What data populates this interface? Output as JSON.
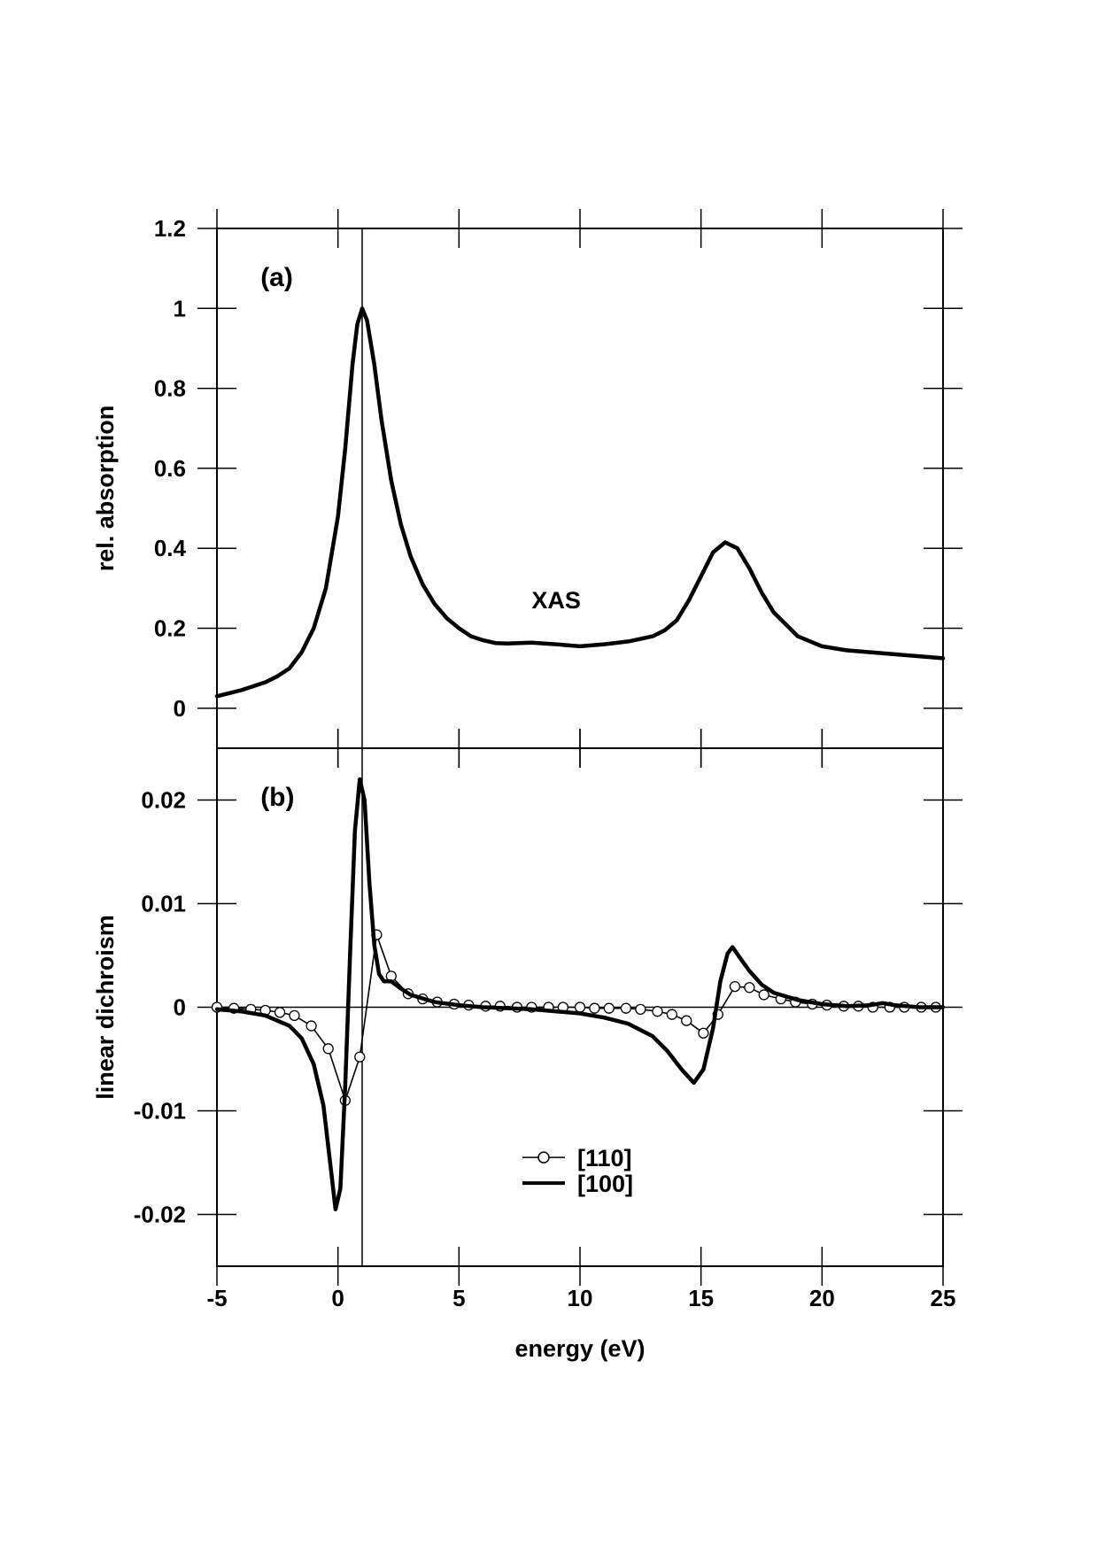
{
  "chart_data": [
    {
      "panel": "(a)",
      "type": "line",
      "xlabel": "energy  (eV)",
      "ylabel": "rel. absorption",
      "xlim": [
        -5,
        25
      ],
      "ylim": [
        -0.1,
        1.2
      ],
      "x_ticks": [
        -5,
        0,
        5,
        10,
        15,
        20,
        25
      ],
      "y_ticks": [
        0,
        0.2,
        0.4,
        0.6,
        0.8,
        1,
        1.2
      ],
      "y_tick_labels": [
        "0",
        "0.2",
        "0.4",
        "0.6",
        "0.8",
        "1",
        "1.2"
      ],
      "annotation": "XAS",
      "vertical_line_x": 1.0,
      "grid": false,
      "series": [
        {
          "x": [
            -5,
            -4,
            -3,
            -2.5,
            -2,
            -1.5,
            -1,
            -0.5,
            0,
            0.3,
            0.6,
            0.8,
            1.0,
            1.2,
            1.5,
            1.8,
            2.2,
            2.6,
            3,
            3.5,
            4,
            4.5,
            5,
            5.5,
            6,
            6.5,
            7,
            8,
            9,
            10,
            11,
            12,
            13,
            13.5,
            14,
            14.5,
            15,
            15.5,
            16,
            16.5,
            17,
            17.5,
            18,
            19,
            20,
            21,
            22,
            23,
            24,
            25
          ],
          "y": [
            0.03,
            0.045,
            0.065,
            0.08,
            0.1,
            0.14,
            0.2,
            0.3,
            0.48,
            0.65,
            0.86,
            0.96,
            1.0,
            0.97,
            0.86,
            0.72,
            0.57,
            0.46,
            0.38,
            0.31,
            0.26,
            0.225,
            0.2,
            0.18,
            0.17,
            0.163,
            0.162,
            0.164,
            0.16,
            0.155,
            0.16,
            0.167,
            0.18,
            0.195,
            0.22,
            0.27,
            0.33,
            0.39,
            0.415,
            0.4,
            0.35,
            0.29,
            0.24,
            0.18,
            0.155,
            0.145,
            0.14,
            0.135,
            0.13,
            0.125
          ]
        }
      ]
    },
    {
      "panel": "(b)",
      "type": "line",
      "xlabel": "energy  (eV)",
      "ylabel": "linear dichroism",
      "xlim": [
        -5,
        25
      ],
      "ylim": [
        -0.025,
        0.025
      ],
      "x_ticks": [
        -5,
        0,
        5,
        10,
        15,
        20,
        25
      ],
      "x_tick_labels": [
        "-5",
        "0",
        "5",
        "10",
        "15",
        "20",
        "25"
      ],
      "y_ticks": [
        -0.02,
        -0.01,
        0,
        0.01,
        0.02
      ],
      "y_tick_labels": [
        "-0.02",
        "-0.01",
        "0",
        "0.01",
        "0.02"
      ],
      "vertical_line_x": 1.0,
      "zero_line": true,
      "grid": false,
      "series": [
        {
          "name": "[110]",
          "marker": "circle",
          "x": [
            -5,
            -4.3,
            -3.6,
            -3,
            -2.4,
            -1.8,
            -1.1,
            -0.4,
            0.3,
            0.9,
            1.6,
            2.2,
            2.9,
            3.5,
            4.1,
            4.8,
            5.4,
            6.1,
            6.7,
            7.4,
            8.0,
            8.7,
            9.3,
            10,
            10.6,
            11.2,
            11.9,
            12.5,
            13.2,
            13.8,
            14.4,
            15.1,
            15.7,
            16.4,
            17.0,
            17.6,
            18.3,
            18.9,
            19.6,
            20.2,
            20.9,
            21.5,
            22.1,
            22.8,
            23.4,
            24.1,
            24.7
          ],
          "y": [
            0,
            -0.0001,
            -0.0002,
            -0.0003,
            -0.0005,
            -0.0008,
            -0.0018,
            -0.004,
            -0.009,
            -0.0048,
            0.007,
            0.003,
            0.0013,
            0.0008,
            0.0005,
            0.0003,
            0.0002,
            0.0001,
            0.0001,
            0,
            0,
            0,
            0,
            0,
            -0.0001,
            -0.0001,
            -0.0001,
            -0.0002,
            -0.0004,
            -0.0007,
            -0.0013,
            -0.0025,
            -0.0007,
            0.002,
            0.0019,
            0.0012,
            0.0008,
            0.0005,
            0.0003,
            0.0002,
            0.0001,
            0.0001,
            0,
            0,
            0,
            0,
            0
          ]
        },
        {
          "name": "[100]",
          "marker": "none",
          "x": [
            -5,
            -4,
            -3,
            -2,
            -1.5,
            -1,
            -0.6,
            -0.3,
            -0.1,
            0.1,
            0.3,
            0.5,
            0.7,
            0.9,
            1.1,
            1.3,
            1.5,
            1.7,
            1.9,
            2.2,
            2.6,
            3,
            4,
            5,
            6,
            8,
            10,
            11,
            12,
            13,
            13.6,
            14.2,
            14.7,
            15.1,
            15.5,
            15.8,
            16.1,
            16.3,
            16.6,
            17,
            17.5,
            18,
            19,
            20,
            21,
            22,
            22.5,
            23,
            24,
            25
          ],
          "y": [
            -0.0002,
            -0.0004,
            -0.0008,
            -0.0018,
            -0.003,
            -0.0055,
            -0.0095,
            -0.0155,
            -0.0195,
            -0.0175,
            -0.0075,
            0.005,
            0.017,
            0.022,
            0.02,
            0.012,
            0.006,
            0.0032,
            0.0025,
            0.0025,
            0.0018,
            0.0012,
            0.0005,
            0.0002,
            0,
            -0.0002,
            -0.0006,
            -0.001,
            -0.0016,
            -0.0028,
            -0.0042,
            -0.006,
            -0.0073,
            -0.006,
            -0.002,
            0.0025,
            0.0052,
            0.0058,
            0.0048,
            0.0035,
            0.0022,
            0.0014,
            0.0007,
            0.0003,
            0.0001,
            0.0002,
            0.0004,
            0.0002,
            0,
            0
          ]
        }
      ]
    }
  ]
}
